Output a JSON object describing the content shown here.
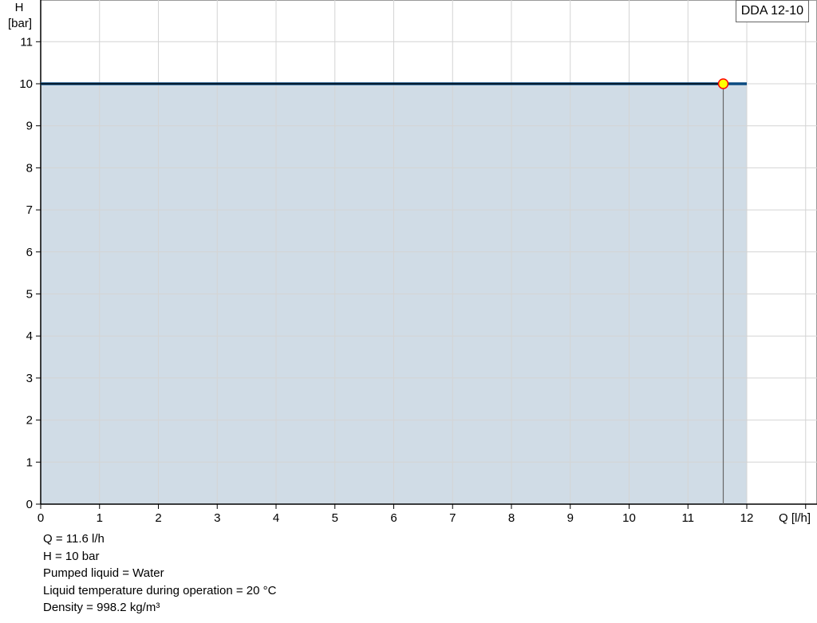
{
  "chart_data": {
    "type": "area",
    "title": "",
    "xlabel": "Q [l/h]",
    "ylabel_line1": "H",
    "ylabel_line2": "[bar]",
    "xlim": [
      0,
      13
    ],
    "ylim": [
      0,
      12
    ],
    "x_ticks": [
      "0",
      "1",
      "2",
      "3",
      "4",
      "5",
      "6",
      "7",
      "8",
      "9",
      "10",
      "11",
      "12"
    ],
    "y_ticks": [
      "0",
      "1",
      "2",
      "3",
      "4",
      "5",
      "6",
      "7",
      "8",
      "9",
      "10",
      "11"
    ],
    "grid": true,
    "series": [
      {
        "name": "DDA 12-10",
        "x": [
          0,
          12
        ],
        "y": [
          10,
          10
        ],
        "color": "#0a4a80",
        "fill": "#d0dce6"
      }
    ],
    "operating_point": {
      "x": 11.6,
      "y": 10,
      "fill": "#ffff00",
      "stroke": "#ff0000"
    },
    "legend_position": "top-right"
  },
  "legend": {
    "label": "DDA 12-10"
  },
  "info": [
    "Q = 11.6 l/h",
    "H = 10 bar",
    "Pumped liquid = Water",
    "Liquid temperature during operation = 20 °C",
    "Density = 998.2 kg/m³"
  ]
}
